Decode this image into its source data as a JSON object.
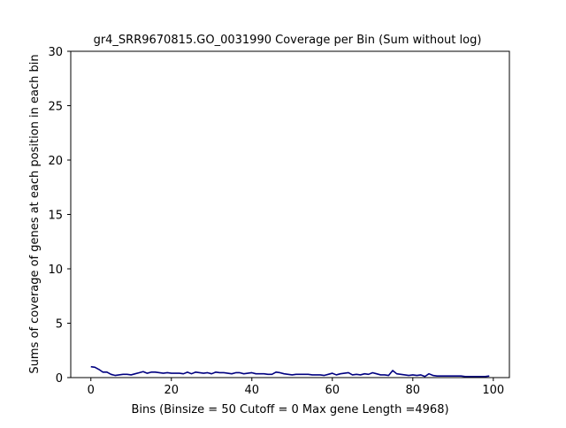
{
  "chart_data": {
    "type": "line",
    "title": "gr4_SRR9670815.GO_0031990 Coverage per Bin (Sum without log)",
    "xlabel": "Bins  (Binsize = 50 Cutoff = 0 Max gene Length =4968)",
    "ylabel": "Sums of coverage of genes at each position in each bin",
    "xlim": [
      -5,
      104
    ],
    "ylim": [
      0,
      30
    ],
    "xticks": [
      0,
      20,
      40,
      60,
      80,
      100
    ],
    "yticks": [
      0,
      5,
      10,
      15,
      20,
      25,
      30
    ],
    "grid": false,
    "series": [
      {
        "color": "#000080",
        "x": [
          0,
          1,
          2,
          3,
          4,
          5,
          6,
          7,
          8,
          9,
          10,
          11,
          12,
          13,
          14,
          15,
          16,
          17,
          18,
          19,
          20,
          21,
          22,
          23,
          24,
          25,
          26,
          27,
          28,
          29,
          30,
          31,
          32,
          33,
          34,
          35,
          36,
          37,
          38,
          39,
          40,
          41,
          42,
          43,
          44,
          45,
          46,
          47,
          48,
          49,
          50,
          51,
          52,
          53,
          54,
          55,
          56,
          57,
          58,
          59,
          60,
          61,
          62,
          63,
          64,
          65,
          66,
          67,
          68,
          69,
          70,
          71,
          72,
          73,
          74,
          75,
          76,
          77,
          78,
          79,
          80,
          81,
          82,
          83,
          84,
          85,
          86,
          87,
          88,
          89,
          90,
          91,
          92,
          93,
          94,
          95,
          96,
          97,
          98,
          99
        ],
        "y": [
          1.0,
          0.95,
          0.75,
          0.5,
          0.5,
          0.3,
          0.2,
          0.25,
          0.3,
          0.3,
          0.25,
          0.35,
          0.45,
          0.55,
          0.4,
          0.5,
          0.5,
          0.45,
          0.4,
          0.45,
          0.4,
          0.4,
          0.4,
          0.35,
          0.5,
          0.35,
          0.5,
          0.45,
          0.4,
          0.45,
          0.35,
          0.5,
          0.45,
          0.45,
          0.4,
          0.35,
          0.45,
          0.45,
          0.35,
          0.4,
          0.45,
          0.35,
          0.35,
          0.35,
          0.3,
          0.3,
          0.5,
          0.45,
          0.35,
          0.3,
          0.25,
          0.3,
          0.3,
          0.3,
          0.3,
          0.25,
          0.25,
          0.25,
          0.2,
          0.3,
          0.4,
          0.25,
          0.35,
          0.4,
          0.45,
          0.25,
          0.3,
          0.25,
          0.35,
          0.3,
          0.45,
          0.35,
          0.25,
          0.25,
          0.2,
          0.65,
          0.35,
          0.3,
          0.25,
          0.2,
          0.25,
          0.2,
          0.25,
          0.1,
          0.35,
          0.2,
          0.15,
          0.15,
          0.15,
          0.15,
          0.15,
          0.15,
          0.15,
          0.1,
          0.1,
          0.1,
          0.1,
          0.1,
          0.1,
          0.15
        ]
      }
    ]
  }
}
